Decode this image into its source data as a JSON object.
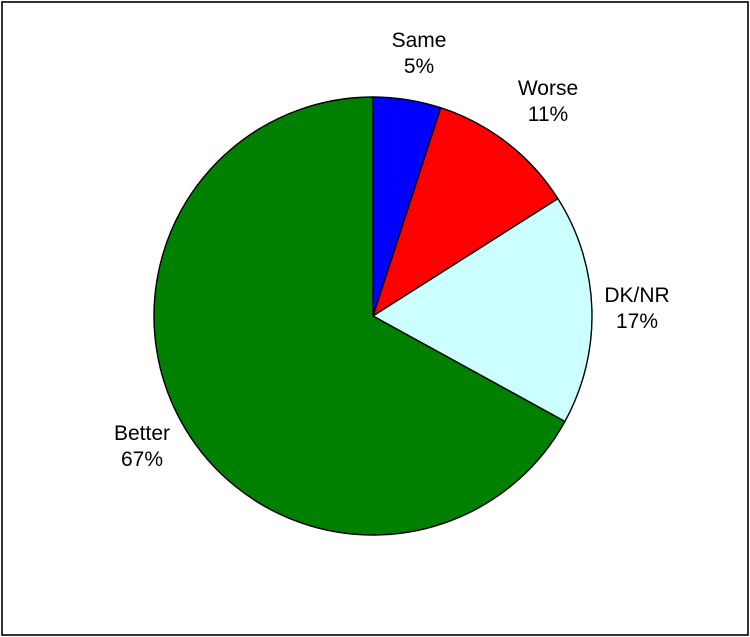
{
  "chart_data": {
    "type": "pie",
    "title": "",
    "start_angle_deg": 0,
    "direction": "clockwise",
    "legend": "none",
    "slices": [
      {
        "label": "Same",
        "value": 5,
        "display": "5%",
        "color": "#0000ff"
      },
      {
        "label": "Worse",
        "value": 11,
        "display": "11%",
        "color": "#ff0000"
      },
      {
        "label": "DK/NR",
        "value": 17,
        "display": "17%",
        "color": "#ccffff"
      },
      {
        "label": "Better",
        "value": 67,
        "display": "67%",
        "color": "#008000"
      }
    ]
  }
}
